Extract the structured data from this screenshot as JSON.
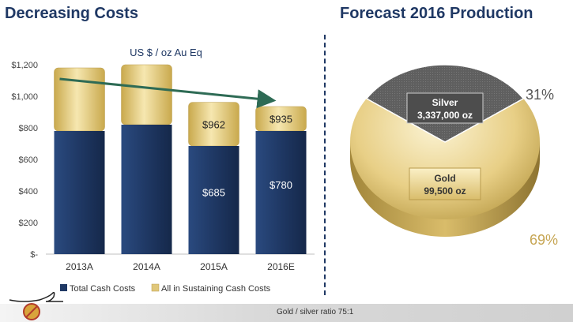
{
  "left_title": "Decreasing Costs",
  "right_title": "Forecast 2016 Production",
  "footer": "Gold / silver ratio 75:1",
  "chart_data": [
    {
      "type": "bar",
      "subtitle": "US $ / oz Au Eq",
      "categories": [
        "2013A",
        "2014A",
        "2015A",
        "2016E"
      ],
      "series": [
        {
          "name": "Total Cash Costs",
          "values": [
            780,
            820,
            685,
            780
          ],
          "labels": [
            "",
            "",
            "$685",
            "$780"
          ],
          "color": "#1f3864"
        },
        {
          "name": "All in Sustaining Cash Costs",
          "values": [
            1180,
            1200,
            962,
            935
          ],
          "labels": [
            "",
            "",
            "$962",
            "$935"
          ],
          "color": "#e0c77a"
        }
      ],
      "yticks": [
        "$-",
        "$200",
        "$400",
        "$600",
        "$800",
        "$1,000",
        "$1,200"
      ],
      "ylim": [
        0,
        1200
      ],
      "trend_arrow": {
        "from": "2013A",
        "to": "2016E",
        "color": "#2e6b55"
      },
      "legend": "bottom"
    },
    {
      "type": "pie",
      "slices": [
        {
          "name": "Silver",
          "label_line1": "Silver",
          "label_line2": "3,337,000 oz",
          "percent": 31,
          "percent_label": "31%",
          "color": "#6b6b6b"
        },
        {
          "name": "Gold",
          "label_line1": "Gold",
          "label_line2": "99,500 oz",
          "percent": 69,
          "percent_label": "69%",
          "color": "#e2c874"
        }
      ]
    }
  ]
}
